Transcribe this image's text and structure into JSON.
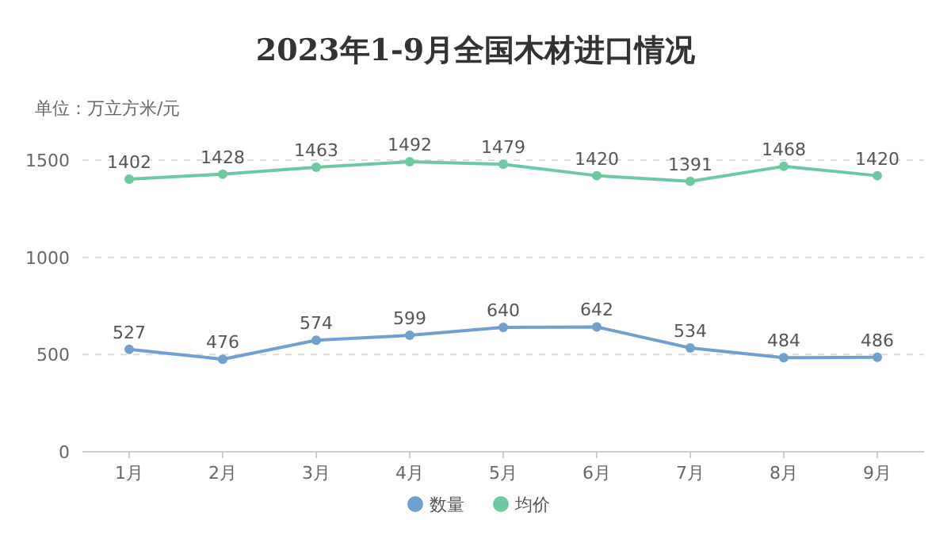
{
  "chart_data": {
    "type": "line",
    "title": "2023年1-9月全国木材进口情况",
    "ylabel": "单位：万立方米/元",
    "categories": [
      "1月",
      "2月",
      "3月",
      "4月",
      "5月",
      "6月",
      "7月",
      "8月",
      "9月"
    ],
    "series": [
      {
        "name": "数量",
        "color": "#6fa0cf",
        "values": [
          527,
          476,
          574,
          599,
          640,
          642,
          534,
          484,
          486
        ]
      },
      {
        "name": "均价",
        "color": "#6ccaa2",
        "values": [
          1402,
          1428,
          1463,
          1492,
          1479,
          1420,
          1391,
          1468,
          1420
        ]
      }
    ],
    "ylim": [
      0,
      1500
    ],
    "yticks": [
      0,
      500,
      1000,
      1500
    ],
    "grid": "y",
    "legend": "bottom",
    "marker": "circle",
    "line_style": "solid",
    "data_labels": true
  }
}
